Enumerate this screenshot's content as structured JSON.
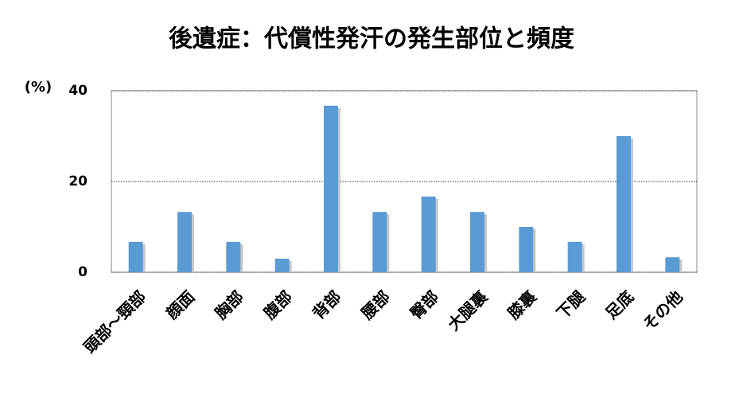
{
  "chart_data": {
    "type": "bar",
    "title": "後遺症：代償性発汗の発生部位と頻度",
    "y_label": "(%)",
    "categories": [
      "頭部～頸部",
      "顔面",
      "胸部",
      "腹部",
      "背部",
      "腰部",
      "臀部",
      "大腿裏",
      "膝裏",
      "下腿",
      "足底",
      "その他"
    ],
    "values": [
      6.7,
      13.3,
      6.7,
      3.0,
      36.7,
      13.3,
      16.7,
      13.3,
      10.0,
      6.7,
      30.0,
      3.3
    ],
    "color": "#5b9bd5",
    "ylim": [
      0,
      40
    ],
    "yticks": [
      0,
      20,
      40
    ],
    "grid": true
  }
}
